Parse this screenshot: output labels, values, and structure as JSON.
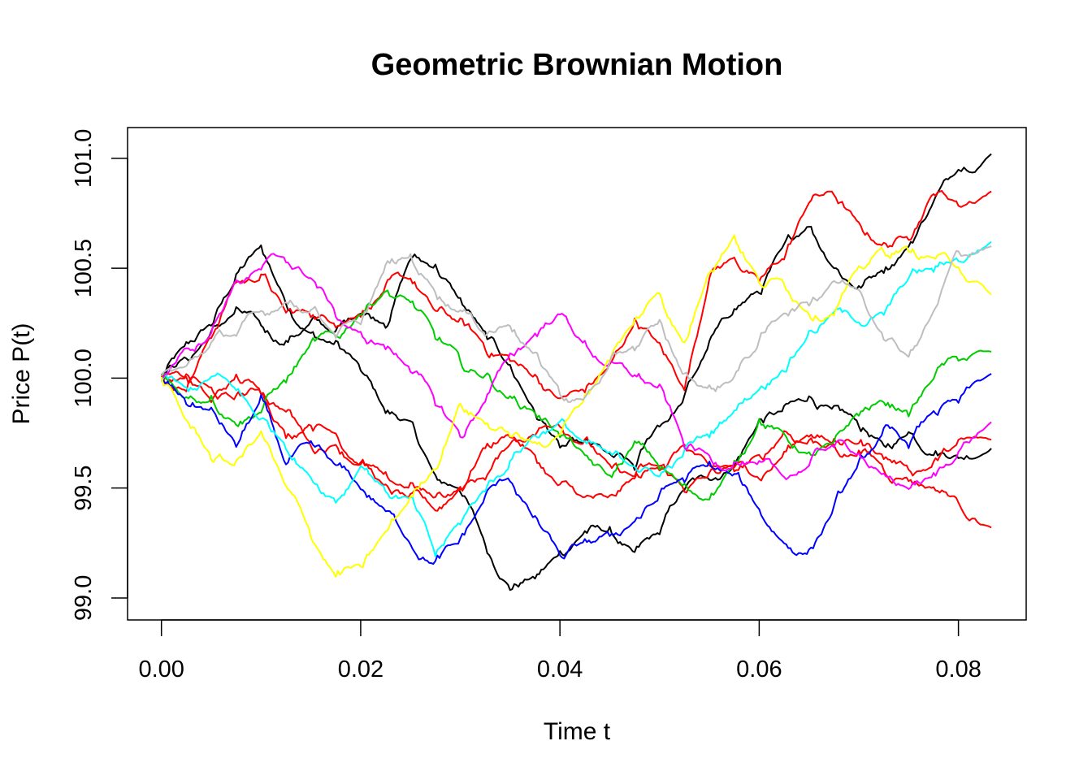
{
  "chart_data": {
    "type": "line",
    "title": "Geometric Brownian Motion",
    "xlabel": "Time t",
    "ylabel": "Price P(t)",
    "xlim": [
      -0.0034,
      0.0868
    ],
    "ylim": [
      98.9,
      101.14
    ],
    "xticks": [
      0.0,
      0.02,
      0.04,
      0.06,
      0.08
    ],
    "xtick_labels": [
      "0.00",
      "0.02",
      "0.04",
      "0.06",
      "0.08"
    ],
    "yticks": [
      99.0,
      99.5,
      100.0,
      100.5,
      101.0
    ],
    "ytick_labels": [
      "99.0",
      "99.5",
      "100.0",
      "100.5",
      "101.0"
    ],
    "grid": false,
    "legend": "none",
    "x": [
      0.0,
      0.0025,
      0.005,
      0.0075,
      0.01,
      0.0125,
      0.015,
      0.0175,
      0.02,
      0.0225,
      0.025,
      0.0275,
      0.03,
      0.0325,
      0.035,
      0.0375,
      0.04,
      0.0425,
      0.045,
      0.0475,
      0.05,
      0.0525,
      0.055,
      0.0575,
      0.06,
      0.0625,
      0.065,
      0.0675,
      0.07,
      0.0725,
      0.075,
      0.0775,
      0.08,
      0.0833
    ],
    "series": [
      {
        "color": "#000000",
        "values": [
          100.0,
          100.15,
          100.25,
          100.45,
          100.6,
          100.35,
          100.2,
          100.15,
          100.05,
          99.85,
          99.8,
          99.55,
          99.5,
          99.25,
          99.05,
          99.1,
          99.2,
          99.3,
          99.3,
          99.2,
          99.3,
          99.5,
          99.55,
          99.6,
          99.8,
          99.85,
          99.9,
          99.85,
          99.8,
          99.7,
          99.75,
          99.65,
          99.65,
          99.68
        ]
      },
      {
        "color": "#000000",
        "values": [
          100.0,
          100.1,
          100.2,
          100.3,
          100.25,
          100.15,
          100.25,
          100.2,
          100.3,
          100.25,
          100.55,
          100.5,
          100.35,
          100.2,
          100.05,
          99.85,
          99.7,
          99.7,
          99.65,
          99.6,
          99.8,
          99.9,
          100.15,
          100.3,
          100.4,
          100.6,
          100.7,
          100.5,
          100.4,
          100.5,
          100.6,
          100.8,
          100.95,
          101.02
        ]
      },
      {
        "color": "#ff0000",
        "values": [
          100.0,
          99.95,
          100.2,
          100.45,
          100.45,
          100.3,
          100.3,
          100.25,
          100.3,
          100.4,
          100.45,
          100.3,
          100.25,
          100.15,
          100.1,
          100.0,
          99.9,
          99.95,
          100.05,
          100.25,
          100.15,
          99.95,
          100.45,
          100.55,
          100.45,
          100.55,
          100.8,
          100.85,
          100.7,
          100.6,
          100.65,
          100.85,
          100.8,
          100.85
        ]
      },
      {
        "color": "#ff0000",
        "values": [
          100.0,
          100.0,
          99.9,
          100.0,
          99.95,
          99.75,
          99.8,
          99.75,
          99.6,
          99.5,
          99.45,
          99.4,
          99.5,
          99.7,
          99.75,
          99.65,
          99.5,
          99.45,
          99.45,
          99.55,
          99.6,
          99.7,
          99.6,
          99.6,
          99.55,
          99.65,
          99.75,
          99.7,
          99.65,
          99.6,
          99.55,
          99.5,
          99.45,
          99.32
        ]
      },
      {
        "color": "#ff0000",
        "values": [
          100.0,
          100.0,
          99.95,
          99.9,
          99.95,
          99.85,
          99.7,
          99.7,
          99.6,
          99.55,
          99.5,
          99.45,
          99.5,
          99.55,
          99.7,
          99.75,
          99.8,
          99.7,
          99.6,
          99.55,
          99.6,
          99.5,
          99.55,
          99.6,
          99.65,
          99.75,
          99.7,
          99.7,
          99.7,
          99.65,
          99.6,
          99.6,
          99.7,
          99.72
        ]
      },
      {
        "color": "#00cd00",
        "values": [
          100.0,
          99.9,
          99.9,
          99.8,
          99.85,
          100.0,
          100.15,
          100.2,
          100.3,
          100.4,
          100.35,
          100.2,
          100.1,
          100.0,
          99.9,
          99.85,
          99.75,
          99.65,
          99.55,
          99.7,
          99.6,
          99.5,
          99.45,
          99.6,
          99.8,
          99.75,
          99.65,
          99.7,
          99.85,
          99.9,
          99.85,
          100.0,
          100.1,
          100.12
        ]
      },
      {
        "color": "#0000ff",
        "values": [
          100.0,
          99.9,
          99.85,
          99.7,
          99.9,
          99.6,
          99.7,
          99.6,
          99.5,
          99.4,
          99.25,
          99.15,
          99.25,
          99.45,
          99.55,
          99.35,
          99.2,
          99.25,
          99.3,
          99.35,
          99.45,
          99.55,
          99.6,
          99.55,
          99.4,
          99.25,
          99.2,
          99.4,
          99.6,
          99.75,
          99.7,
          99.85,
          99.9,
          100.02
        ]
      },
      {
        "color": "#00ffff",
        "values": [
          100.0,
          99.95,
          100.0,
          99.95,
          99.8,
          99.7,
          99.55,
          99.45,
          99.6,
          99.5,
          99.45,
          99.2,
          99.35,
          99.5,
          99.6,
          99.75,
          99.8,
          99.7,
          99.65,
          99.6,
          99.55,
          99.65,
          99.75,
          99.85,
          99.95,
          100.05,
          100.2,
          100.3,
          100.25,
          100.3,
          100.45,
          100.5,
          100.55,
          100.62
        ]
      },
      {
        "color": "#ff00ff",
        "values": [
          100.0,
          100.15,
          100.2,
          100.45,
          100.5,
          100.55,
          100.45,
          100.3,
          100.2,
          100.15,
          100.05,
          99.9,
          99.75,
          99.9,
          100.1,
          100.2,
          100.3,
          100.15,
          100.05,
          100.0,
          99.95,
          99.7,
          99.65,
          99.6,
          99.6,
          99.55,
          99.6,
          99.7,
          99.65,
          99.55,
          99.5,
          99.55,
          99.65,
          99.8
        ]
      },
      {
        "color": "#ffff00",
        "values": [
          100.0,
          99.8,
          99.65,
          99.6,
          99.75,
          99.5,
          99.3,
          99.1,
          99.15,
          99.3,
          99.45,
          99.6,
          99.9,
          99.8,
          99.75,
          99.7,
          99.75,
          99.9,
          100.1,
          100.25,
          100.4,
          100.15,
          100.5,
          100.65,
          100.45,
          100.45,
          100.3,
          100.3,
          100.5,
          100.6,
          100.6,
          100.55,
          100.5,
          100.38
        ]
      },
      {
        "color": "#bebebe",
        "values": [
          100.0,
          100.05,
          100.15,
          100.2,
          100.3,
          100.35,
          100.3,
          100.2,
          100.25,
          100.5,
          100.55,
          100.4,
          100.3,
          100.2,
          100.25,
          100.1,
          99.95,
          99.9,
          100.05,
          100.15,
          100.25,
          100.0,
          99.95,
          100.0,
          100.15,
          100.3,
          100.35,
          100.45,
          100.4,
          100.2,
          100.1,
          100.3,
          100.6,
          100.6
        ]
      }
    ]
  }
}
